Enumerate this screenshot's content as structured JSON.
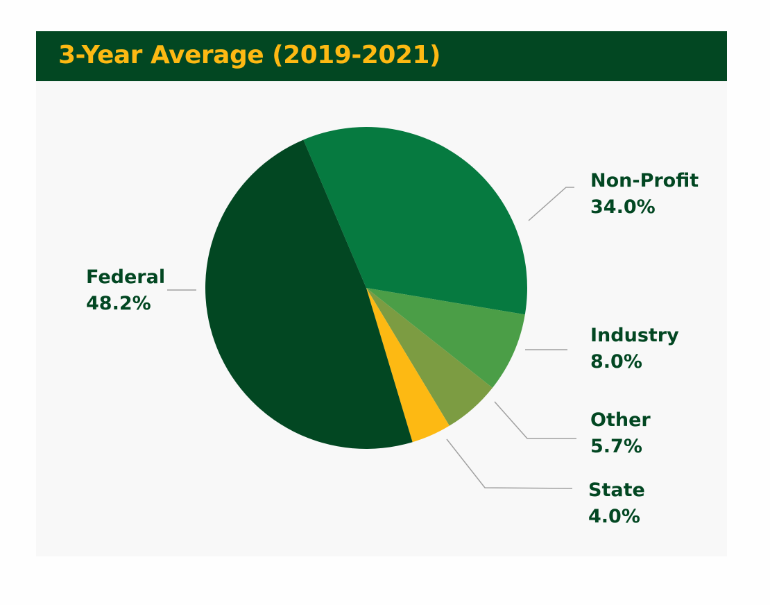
{
  "header": {
    "title": "3-Year Average (2019-2021)"
  },
  "colors": {
    "header_bg": "#024722",
    "title": "#fdb913",
    "label": "#024722",
    "leader": "#a0a0a0"
  },
  "chart_data": {
    "type": "pie",
    "title": "3-Year Average (2019-2021)",
    "start_angle_deg": -23,
    "slices": [
      {
        "name": "Non-Profit",
        "value": 34.0,
        "label": "34.0%",
        "color": "#067a40"
      },
      {
        "name": "Industry",
        "value": 8.0,
        "label": "8.0%",
        "color": "#4b9e47"
      },
      {
        "name": "Other",
        "value": 5.7,
        "label": "5.7%",
        "color": "#7c9c42"
      },
      {
        "name": "State",
        "value": 4.0,
        "label": "4.0%",
        "color": "#fdb913"
      },
      {
        "name": "Federal",
        "value": 48.2,
        "label": "48.2%",
        "color": "#024722"
      }
    ]
  }
}
